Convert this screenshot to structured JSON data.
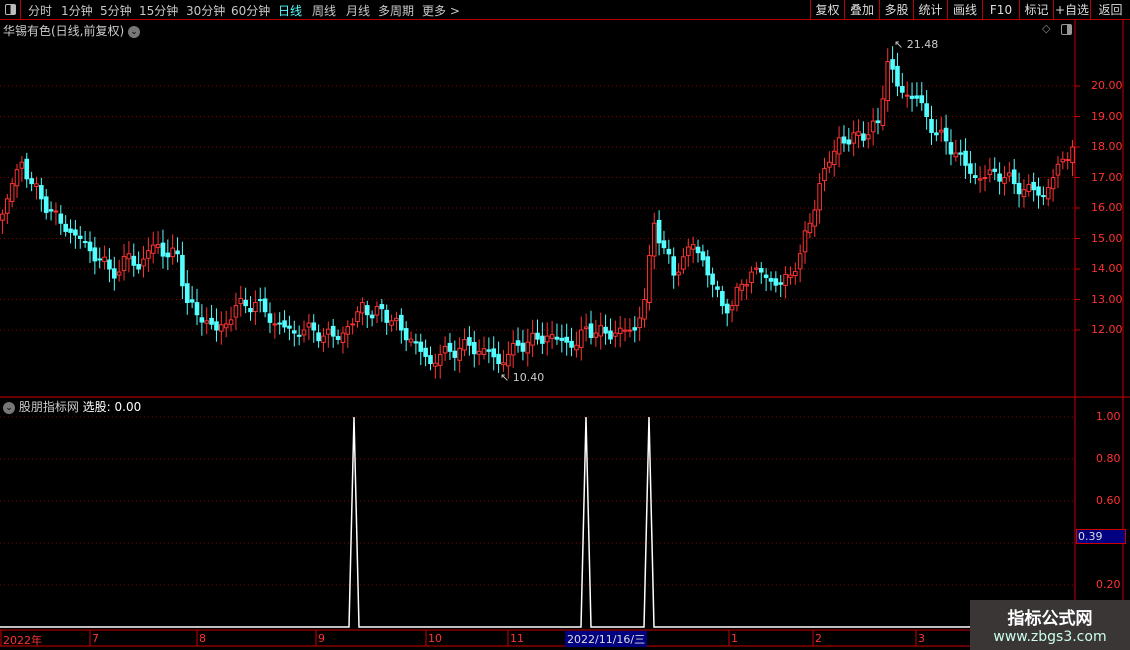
{
  "toolbar": {
    "periods": [
      "分时",
      "1分钟",
      "5分钟",
      "15分钟",
      "30分钟",
      "60分钟",
      "日线",
      "周线",
      "月线",
      "多周期",
      "更多 >"
    ],
    "active_period": "日线",
    "right_buttons": [
      "复权",
      "叠加",
      "多股",
      "统计",
      "画线",
      "F10",
      "标记",
      "+自选",
      "返回"
    ]
  },
  "chart": {
    "title": "华锡有色(日线,前复权)",
    "high_label": "21.48",
    "low_label": "10.40",
    "price_axis": [
      "20.00",
      "19.00",
      "18.00",
      "17.00",
      "16.00",
      "15.00",
      "14.00",
      "13.00",
      "12.00"
    ],
    "colors": {
      "up": "#ff3333",
      "down": "#54ffff",
      "axis": "#ff3333",
      "grid": "#8b0000"
    }
  },
  "chart_data": {
    "type": "candlestick",
    "closes": [
      15.8,
      16.8,
      17.5,
      16.8,
      16.3,
      15.9,
      15.5,
      15.2,
      15.0,
      14.6,
      14.3,
      14.0,
      13.9,
      14.5,
      14.0,
      14.6,
      14.8,
      14.4,
      14.5,
      12.9,
      12.5,
      12.3,
      12.0,
      12.2,
      12.8,
      12.8,
      12.9,
      12.6,
      12.2,
      12.1,
      11.9,
      12.0,
      12.0,
      11.8,
      11.8,
      11.9,
      12.2,
      12.9,
      12.4,
      12.7,
      12.3,
      12.0,
      11.7,
      11.3,
      10.9,
      11.2,
      11.3,
      11.4,
      11.5,
      11.3,
      11.3,
      10.9,
      11.2,
      11.5,
      11.6,
      11.7,
      11.8,
      11.7,
      11.6,
      11.5,
      12.1,
      11.9,
      11.9,
      11.9,
      12.0,
      12.0,
      13.0,
      15.5,
      14.7,
      13.8,
      14.4,
      14.8,
      14.3,
      13.5,
      12.8,
      12.8,
      13.5,
      13.9,
      13.9,
      13.6,
      13.5,
      13.8,
      14.5,
      15.5,
      16.8,
      17.5,
      18.3,
      18.1,
      18.5,
      18.4,
      18.8,
      20.8,
      20.0,
      19.7,
      19.6,
      19.0,
      18.4,
      18.2,
      17.8,
      17.4,
      17.0,
      17.0,
      17.2,
      17.0,
      16.8,
      16.6,
      16.6,
      16.4,
      17.0,
      17.6,
      18.0
    ],
    "high": 21.48,
    "low": 10.4
  },
  "indicator": {
    "title": "股朋指标网",
    "value_label": "选股: 0.00",
    "axis": [
      "1.00",
      "0.80",
      "0.60",
      "0.20"
    ],
    "current_value": "0.39",
    "signal_value": 1.0
  },
  "date_axis": {
    "labels": [
      "2022年",
      "7",
      "8",
      "9",
      "10",
      "11",
      "1",
      "2",
      "3"
    ],
    "selected": "2022/11/16/三"
  },
  "watermark": {
    "name": "指标公式网",
    "url": "www.zbgs3.com"
  }
}
